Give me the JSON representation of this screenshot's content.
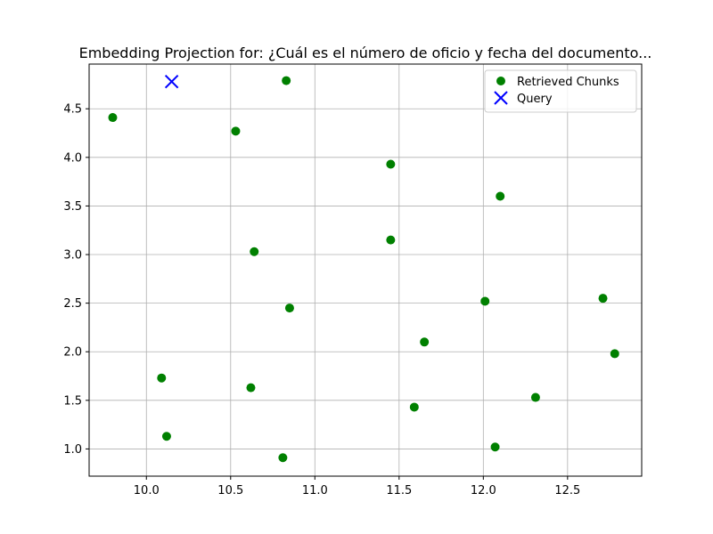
{
  "chart_data": {
    "type": "scatter",
    "title": "Embedding Projection for: ¿Cuál es el número de oficio y fecha del documento...",
    "xlabel": "",
    "ylabel": "",
    "xlim": [
      9.66,
      12.94
    ],
    "ylim": [
      0.72,
      4.96
    ],
    "xticks": [
      {
        "value": 10.0,
        "label": "10.0"
      },
      {
        "value": 10.5,
        "label": "10.5"
      },
      {
        "value": 11.0,
        "label": "11.0"
      },
      {
        "value": 11.5,
        "label": "11.5"
      },
      {
        "value": 12.0,
        "label": "12.0"
      },
      {
        "value": 12.5,
        "label": "12.5"
      }
    ],
    "yticks": [
      {
        "value": 1.0,
        "label": "1.0"
      },
      {
        "value": 1.5,
        "label": "1.5"
      },
      {
        "value": 2.0,
        "label": "2.0"
      },
      {
        "value": 2.5,
        "label": "2.5"
      },
      {
        "value": 3.0,
        "label": "3.0"
      },
      {
        "value": 3.5,
        "label": "3.5"
      },
      {
        "value": 4.0,
        "label": "4.0"
      },
      {
        "value": 4.5,
        "label": "4.5"
      }
    ],
    "grid": true,
    "legend_position": "upper right",
    "series": [
      {
        "name": "Retrieved Chunks",
        "marker": "circle",
        "color": "#008000",
        "points": [
          {
            "x": 9.8,
            "y": 4.41
          },
          {
            "x": 10.83,
            "y": 4.79
          },
          {
            "x": 10.53,
            "y": 4.27
          },
          {
            "x": 11.45,
            "y": 3.93
          },
          {
            "x": 12.1,
            "y": 3.6
          },
          {
            "x": 11.45,
            "y": 3.15
          },
          {
            "x": 10.64,
            "y": 3.03
          },
          {
            "x": 12.71,
            "y": 2.55
          },
          {
            "x": 12.01,
            "y": 2.52
          },
          {
            "x": 10.85,
            "y": 2.45
          },
          {
            "x": 11.65,
            "y": 2.1
          },
          {
            "x": 12.78,
            "y": 1.98
          },
          {
            "x": 10.09,
            "y": 1.73
          },
          {
            "x": 10.62,
            "y": 1.63
          },
          {
            "x": 12.31,
            "y": 1.53
          },
          {
            "x": 11.59,
            "y": 1.43
          },
          {
            "x": 10.12,
            "y": 1.13
          },
          {
            "x": 12.07,
            "y": 1.02
          },
          {
            "x": 10.81,
            "y": 0.91
          }
        ]
      },
      {
        "name": "Query",
        "marker": "x",
        "color": "#0000ff",
        "points": [
          {
            "x": 10.15,
            "y": 4.78
          }
        ]
      }
    ]
  }
}
